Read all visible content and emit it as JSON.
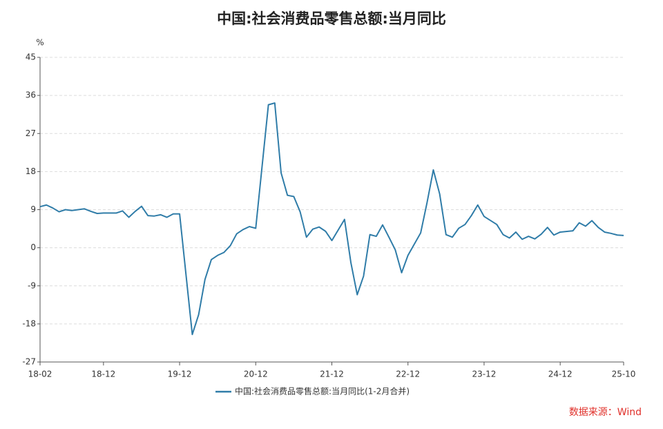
{
  "chart_data": {
    "type": "line",
    "title": "中国:社会消费品零售总额:当月同比",
    "y_unit": "%",
    "source": "数据来源：Wind",
    "x": [
      "18-02",
      "18-03",
      "18-04",
      "18-05",
      "18-06",
      "18-07",
      "18-08",
      "18-09",
      "18-10",
      "18-11",
      "18-12",
      "19-02",
      "19-03",
      "19-04",
      "19-05",
      "19-06",
      "19-07",
      "19-08",
      "19-09",
      "19-10",
      "19-11",
      "19-12",
      "20-02",
      "20-03",
      "20-04",
      "20-05",
      "20-06",
      "20-07",
      "20-08",
      "20-09",
      "20-10",
      "20-11",
      "20-12",
      "21-02",
      "21-03",
      "21-04",
      "21-05",
      "21-06",
      "21-07",
      "21-08",
      "21-09",
      "21-10",
      "21-11",
      "21-12",
      "22-02",
      "22-03",
      "22-04",
      "22-05",
      "22-06",
      "22-07",
      "22-08",
      "22-09",
      "22-10",
      "22-11",
      "22-12",
      "23-02",
      "23-03",
      "23-04",
      "23-05",
      "23-06",
      "23-07",
      "23-08",
      "23-09",
      "23-10",
      "23-11",
      "23-12",
      "24-02",
      "24-03",
      "24-04",
      "24-05",
      "24-06",
      "24-07",
      "24-08",
      "24-09",
      "24-10",
      "24-11",
      "24-12",
      "25-02",
      "25-03",
      "25-04",
      "25-05",
      "25-06",
      "25-07",
      "25-08",
      "25-09",
      "25-10"
    ],
    "series": [
      {
        "name": "中国:社会消费品零售总额:当月同比(1-2月合并)",
        "color": "#2f7ca8",
        "values": [
          9.7,
          10.1,
          9.4,
          8.5,
          9.0,
          8.8,
          9.0,
          9.2,
          8.6,
          8.1,
          8.2,
          8.2,
          8.7,
          7.2,
          8.6,
          9.8,
          7.6,
          7.5,
          7.8,
          7.2,
          8.0,
          8.0,
          -20.5,
          -15.8,
          -7.5,
          -2.8,
          -1.8,
          -1.1,
          0.5,
          3.3,
          4.3,
          5.0,
          4.6,
          33.8,
          34.2,
          17.7,
          12.4,
          12.1,
          8.5,
          2.5,
          4.4,
          4.9,
          3.9,
          1.7,
          6.7,
          -3.5,
          -11.1,
          -6.7,
          3.1,
          2.7,
          5.4,
          2.5,
          -0.5,
          -5.9,
          -1.8,
          3.5,
          10.6,
          18.4,
          12.7,
          3.1,
          2.5,
          4.6,
          5.5,
          7.6,
          10.1,
          7.4,
          5.5,
          3.1,
          2.3,
          3.7,
          2.0,
          2.7,
          2.1,
          3.2,
          4.8,
          3.0,
          3.7,
          4.0,
          5.9,
          5.1,
          6.4,
          4.8,
          3.7,
          3.4,
          3.0,
          2.9
        ]
      }
    ],
    "xticks": [
      "18-02",
      "18-12",
      "19-12",
      "20-12",
      "21-12",
      "22-12",
      "23-12",
      "24-12",
      "25-10"
    ],
    "ylim": [
      -27,
      45
    ],
    "yticks": [
      -27,
      -18,
      -9,
      0,
      9,
      18,
      27,
      36,
      45
    ],
    "grid": true
  }
}
